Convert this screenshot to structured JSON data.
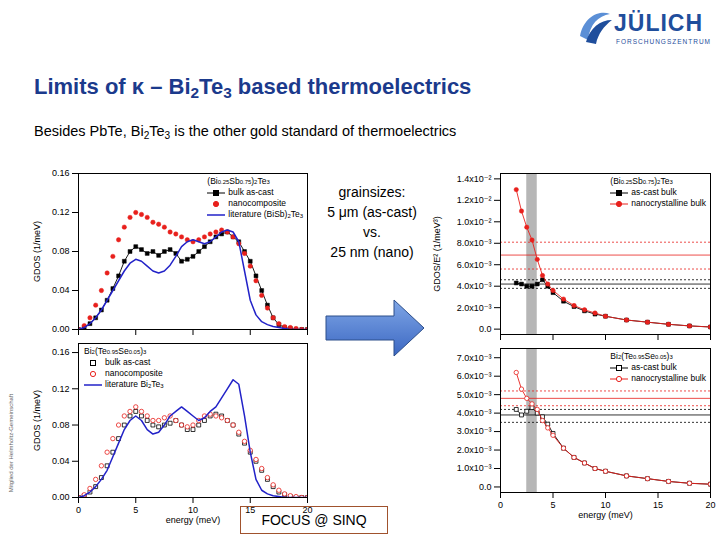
{
  "slide": {
    "title": "Limits of κ – Bi2Te3 based thermoelectrics",
    "subtitle": "Besides PbTe, Bi2Te3 is the other gold standard of thermoelectrics",
    "annotation": [
      "grainsizes:",
      "5 μm (as-cast)",
      "vs.",
      "25 nm (nano)"
    ],
    "instrument": "FOCUS @ SINQ",
    "logo": [
      "JÜLICH",
      "FORSCHUNGSZENTRUM"
    ],
    "side_note": "Mitglied der Helmholtz-Gemeinschaft"
  },
  "chart_data": [
    {
      "type": "line",
      "title": "(Bi0.25Sb0.75)2Te3",
      "ylabel": "GDOS (1/meV)",
      "xlim": [
        0,
        20
      ],
      "xticks": [
        0,
        5,
        10,
        15,
        20
      ],
      "ylim": [
        0,
        0.16
      ],
      "yticks": [
        {
          "value": 0,
          "label": "0.00"
        },
        0.04,
        0.08,
        0.12,
        0.16
      ],
      "tick_labels": "y",
      "legend": "top-right",
      "x": [
        0,
        0.5,
        1,
        1.5,
        2,
        2.5,
        3,
        3.5,
        4,
        4.5,
        5,
        5.5,
        6,
        6.5,
        7,
        7.5,
        8,
        8.5,
        9,
        9.5,
        10,
        10.5,
        11,
        11.5,
        12,
        12.5,
        13,
        13.5,
        14,
        14.5,
        15,
        15.5,
        16,
        16.5,
        17,
        17.5,
        18,
        18.5,
        19,
        19.5,
        20
      ],
      "series": [
        {
          "name": "bulk as-cast",
          "color": "#000000",
          "marker": "square",
          "line_style": "solid",
          "values": [
            0,
            0.002,
            0.006,
            0.012,
            0.02,
            0.03,
            0.042,
            0.055,
            0.07,
            0.08,
            0.085,
            0.082,
            0.078,
            0.08,
            0.076,
            0.08,
            0.082,
            0.078,
            0.07,
            0.072,
            0.075,
            0.08,
            0.085,
            0.09,
            0.095,
            0.098,
            0.1,
            0.095,
            0.09,
            0.08,
            0.07,
            0.055,
            0.04,
            0.025,
            0.012,
            0.005,
            0.002,
            0.001,
            0,
            0,
            0
          ]
        },
        {
          "name": "nanocomposite",
          "color": "#e8201c",
          "marker": "circle",
          "line_style": "none",
          "values": [
            0,
            0.004,
            0.012,
            0.025,
            0.04,
            0.058,
            0.075,
            0.092,
            0.105,
            0.115,
            0.12,
            0.118,
            0.115,
            0.11,
            0.108,
            0.105,
            0.1,
            0.098,
            0.095,
            0.092,
            0.09,
            0.092,
            0.095,
            0.098,
            0.1,
            0.102,
            0.1,
            0.095,
            0.088,
            0.078,
            0.065,
            0.05,
            0.035,
            0.022,
            0.012,
            0.006,
            0.003,
            0.002,
            0.001,
            0,
            0
          ]
        },
        {
          "name": "literature (BiSb)2Te3",
          "color": "#2222c8",
          "marker": "none",
          "line_style": "solid",
          "values": [
            0,
            0.002,
            0.006,
            0.012,
            0.02,
            0.03,
            0.04,
            0.05,
            0.06,
            0.068,
            0.072,
            0.07,
            0.065,
            0.06,
            0.058,
            0.06,
            0.066,
            0.075,
            0.085,
            0.09,
            0.092,
            0.09,
            0.088,
            0.09,
            0.095,
            0.1,
            0.102,
            0.1,
            0.09,
            0.06,
            0.03,
            0.015,
            0.008,
            0.005,
            0.003,
            0.002,
            0.001,
            0,
            0,
            0,
            0
          ]
        }
      ]
    },
    {
      "type": "line",
      "title": "Bi2(Te0.95Se0.05)3",
      "xlabel": "energy (meV)",
      "ylabel": "GDOS (1/meV)",
      "xlim": [
        0,
        20
      ],
      "xticks": [
        0,
        5,
        10,
        15,
        20
      ],
      "ylim": [
        0,
        0.17
      ],
      "yticks": [
        {
          "value": 0,
          "label": "0.00"
        },
        0.04,
        0.08,
        0.12,
        0.16
      ],
      "legend": "top-left",
      "x": [
        0,
        0.5,
        1,
        1.5,
        2,
        2.5,
        3,
        3.5,
        4,
        4.5,
        5,
        5.5,
        6,
        6.5,
        7,
        7.5,
        8,
        8.5,
        9,
        9.5,
        10,
        10.5,
        11,
        11.5,
        12,
        12.5,
        13,
        13.5,
        14,
        14.5,
        15,
        15.5,
        16,
        16.5,
        17,
        17.5,
        18,
        18.5,
        19,
        19.5,
        20
      ],
      "series": [
        {
          "name": "bulk as-cast",
          "color": "#000000",
          "marker": "square-open",
          "line_style": "none",
          "values": [
            0,
            0.002,
            0.006,
            0.012,
            0.022,
            0.035,
            0.05,
            0.065,
            0.08,
            0.09,
            0.095,
            0.09,
            0.085,
            0.08,
            0.078,
            0.08,
            0.082,
            0.085,
            0.08,
            0.075,
            0.075,
            0.08,
            0.085,
            0.09,
            0.092,
            0.09,
            0.085,
            0.08,
            0.07,
            0.06,
            0.05,
            0.04,
            0.03,
            0.02,
            0.012,
            0.006,
            0.003,
            0.001,
            0,
            0,
            0
          ]
        },
        {
          "name": "nanocomposite",
          "color": "#e8201c",
          "marker": "circle-open",
          "line_style": "none",
          "values": [
            0,
            0.003,
            0.01,
            0.02,
            0.035,
            0.05,
            0.065,
            0.08,
            0.09,
            0.095,
            0.1,
            0.095,
            0.09,
            0.085,
            0.085,
            0.088,
            0.09,
            0.085,
            0.08,
            0.078,
            0.08,
            0.085,
            0.09,
            0.092,
            0.09,
            0.088,
            0.085,
            0.08,
            0.072,
            0.062,
            0.052,
            0.042,
            0.032,
            0.022,
            0.014,
            0.008,
            0.004,
            0.002,
            0.001,
            0,
            0
          ]
        },
        {
          "name": "literature Bi2Te3",
          "color": "#2222c8",
          "marker": "none",
          "line_style": "solid",
          "values": [
            0,
            0.002,
            0.006,
            0.012,
            0.02,
            0.03,
            0.045,
            0.06,
            0.075,
            0.085,
            0.09,
            0.085,
            0.075,
            0.07,
            0.072,
            0.08,
            0.09,
            0.095,
            0.1,
            0.095,
            0.09,
            0.085,
            0.088,
            0.095,
            0.1,
            0.11,
            0.12,
            0.13,
            0.125,
            0.09,
            0.05,
            0.02,
            0.008,
            0.004,
            0.002,
            0.001,
            0,
            0,
            0,
            0,
            0
          ]
        }
      ]
    },
    {
      "type": "line",
      "title": "(Bi0.25Sb0.75)2Te3",
      "ylabel": "GDOS/E² (1/meV³)",
      "xlim": [
        0,
        20
      ],
      "xticks": [
        0,
        5,
        10,
        15,
        20
      ],
      "ylim": [
        -0.0005,
        0.0145
      ],
      "yticks": [
        {
          "value": 0,
          "label": "0.0"
        },
        {
          "value": 0.002,
          "label": "2.0x10⁻³"
        },
        {
          "value": 0.004,
          "label": "4.0x10⁻³"
        },
        {
          "value": 0.006,
          "label": "6.0x10⁻³"
        },
        {
          "value": 0.008,
          "label": "8.0x10⁻³"
        },
        {
          "value": 0.01,
          "label": "1.0x10⁻²"
        },
        {
          "value": 0.012,
          "label": "1.2x10⁻²"
        },
        {
          "value": 0.014,
          "label": "1.4x10⁻²"
        }
      ],
      "tick_labels": "y",
      "legend": "top-right",
      "band": [
        2.5,
        3.5
      ],
      "hlines": [
        {
          "value": 0.0081,
          "color": "#e8201c",
          "line_style": "dotted"
        },
        {
          "value": 0.0069,
          "color": "#e8201c",
          "line_style": "solid"
        },
        {
          "value": 0.0056,
          "color": "#e8201c",
          "line_style": "dotted"
        },
        {
          "value": 0.0046,
          "color": "#000000",
          "line_style": "dotted"
        },
        {
          "value": 0.0042,
          "color": "#000000",
          "line_style": "solid"
        },
        {
          "value": 0.0038,
          "color": "#000000",
          "line_style": "dotted"
        }
      ],
      "x": [
        1.5,
        2,
        2.5,
        3,
        3.5,
        4,
        4.5,
        5,
        6,
        7,
        8,
        9,
        10,
        12,
        14,
        16,
        18,
        20
      ],
      "series": [
        {
          "name": "as-cast bulk",
          "color": "#000000",
          "marker": "square",
          "line_style": "solid",
          "values": [
            0.0043,
            0.0042,
            0.004,
            0.004,
            0.0042,
            0.0046,
            0.004,
            0.0034,
            0.0026,
            0.0021,
            0.0017,
            0.0014,
            0.0012,
            0.00085,
            0.00065,
            0.00045,
            0.0003,
            0.0002
          ]
        },
        {
          "name": "nanocrystalline bulk",
          "color": "#e8201c",
          "marker": "circle",
          "line_style": "solid",
          "values": [
            0.013,
            0.011,
            0.0095,
            0.0083,
            0.0065,
            0.005,
            0.0042,
            0.0036,
            0.0028,
            0.0022,
            0.0018,
            0.0015,
            0.0012,
            0.00085,
            0.00065,
            0.00045,
            0.0003,
            0.0002
          ]
        }
      ]
    },
    {
      "type": "line",
      "title": "Bi2(Te0.95Se0.05)3",
      "xlabel": "energy (meV)",
      "xlim": [
        0,
        20
      ],
      "xticks": [
        0,
        5,
        10,
        15,
        20
      ],
      "ylim": [
        -0.0003,
        0.0075
      ],
      "yticks": [
        {
          "value": 0,
          "label": "0.0"
        },
        {
          "value": 0.001,
          "label": "1.0x10⁻³"
        },
        {
          "value": 0.002,
          "label": "2.0x10⁻³"
        },
        {
          "value": 0.003,
          "label": "3.0x10⁻³"
        },
        {
          "value": 0.004,
          "label": "4.0x10⁻³"
        },
        {
          "value": 0.005,
          "label": "5.0x10⁻³"
        },
        {
          "value": 0.006,
          "label": "6.0x10⁻³"
        },
        {
          "value": 0.007,
          "label": "7.0x10⁻³"
        }
      ],
      "legend": "top-right",
      "band": [
        2.5,
        3.5
      ],
      "hlines": [
        {
          "value": 0.0052,
          "color": "#e8201c",
          "line_style": "dotted"
        },
        {
          "value": 0.0048,
          "color": "#e8201c",
          "line_style": "solid"
        },
        {
          "value": 0.0044,
          "color": "#e8201c",
          "line_style": "dotted"
        },
        {
          "value": 0.0042,
          "color": "#000000",
          "line_style": "dotted"
        },
        {
          "value": 0.0039,
          "color": "#000000",
          "line_style": "solid"
        },
        {
          "value": 0.0035,
          "color": "#000000",
          "line_style": "dotted"
        }
      ],
      "x": [
        1.5,
        2,
        2.5,
        3,
        3.5,
        4,
        4.5,
        5,
        6,
        7,
        8,
        9,
        10,
        12,
        14,
        16,
        18,
        20
      ],
      "series": [
        {
          "name": "as-cast bulk",
          "color": "#000000",
          "marker": "square-open",
          "line_style": "solid",
          "values": [
            0.0042,
            0.0039,
            0.0041,
            0.0043,
            0.004,
            0.0038,
            0.0034,
            0.0029,
            0.0021,
            0.0016,
            0.0013,
            0.001,
            0.00085,
            0.0006,
            0.00045,
            0.0003,
            0.0002,
            0.00015
          ]
        },
        {
          "name": "nanocrystalline bulk",
          "color": "#e8201c",
          "marker": "circle-open",
          "line_style": "solid",
          "values": [
            0.0062,
            0.0053,
            0.0048,
            0.0045,
            0.0042,
            0.0036,
            0.0032,
            0.0028,
            0.0021,
            0.0016,
            0.0013,
            0.001,
            0.00085,
            0.0006,
            0.00045,
            0.0003,
            0.0002,
            0.00015
          ]
        }
      ]
    }
  ]
}
